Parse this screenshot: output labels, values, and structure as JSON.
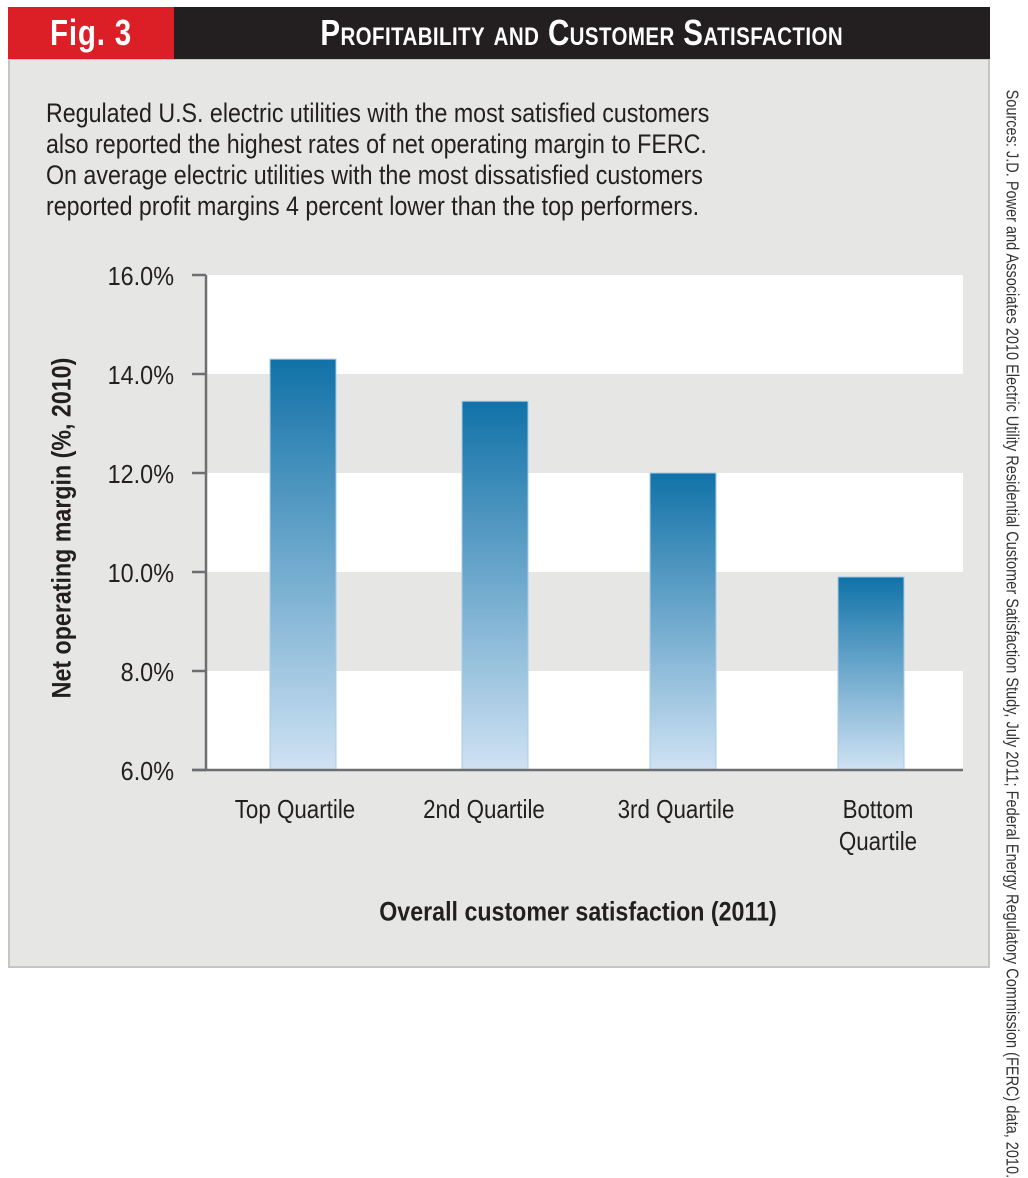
{
  "header": {
    "fig_label": "Fig. 3",
    "title": "Profitability and Customer Satisfaction"
  },
  "intro": {
    "lines": [
      "Regulated U.S. electric utilities with the most satisfied customers",
      "also reported the highest rates of net operating margin to FERC.",
      "On average electric utilities with the most dissatisfied customers",
      "reported profit margins 4 percent lower than the top performers."
    ]
  },
  "source": "Sources: J.D. Power and Associates 2010 Electric Utility Residential Customer Satisfaction Study, July 2011; Federal Energy Regulatory Commission (FERC) data, 2010.",
  "colors": {
    "fig_red": "#dc1f26",
    "title_black": "#231f20",
    "panel_gray": "#e6e7e4",
    "bar_top_dark": "#1172a8",
    "bar_bottom_light": "#cfe2f3"
  },
  "chart_data": {
    "type": "bar",
    "title": "Profitability and Customer Satisfaction",
    "xlabel": "Overall customer satisfaction (2011)",
    "ylabel": "Net operating margin (%, 2010)",
    "categories": [
      "Top Quartile",
      "2nd Quartile",
      "3rd Quartile",
      "Bottom Quartile"
    ],
    "category_lines": [
      [
        "Top Quartile"
      ],
      [
        "2nd Quartile"
      ],
      [
        "3rd Quartile"
      ],
      [
        "Bottom",
        "Quartile"
      ]
    ],
    "values": [
      14.3,
      13.45,
      12.0,
      9.9
    ],
    "ylim": [
      6.0,
      16.0
    ],
    "yticks": [
      6.0,
      8.0,
      10.0,
      12.0,
      14.0,
      16.0
    ],
    "ytick_labels": [
      "6.0%",
      "8.0%",
      "10.0%",
      "12.0%",
      "14.0%",
      "16.0%"
    ],
    "grid": "alternating horizontal bands",
    "legend": "none"
  }
}
